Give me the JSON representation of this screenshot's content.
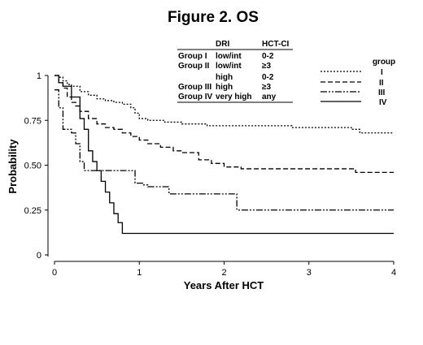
{
  "chart_data": {
    "type": "line",
    "step": true,
    "title": "Figure 2. OS",
    "xlabel": "Years After HCT",
    "ylabel": "Probability",
    "xlim": [
      0,
      4
    ],
    "ylim": [
      0,
      1
    ],
    "xticks": [
      0,
      1,
      2,
      3,
      4
    ],
    "yticks": [
      0,
      0.25,
      0.5,
      0.75,
      1
    ],
    "ytick_labels": [
      "0",
      "0.25",
      "0.50",
      "0.75",
      "1"
    ],
    "grid": false,
    "legend": {
      "title": "group",
      "position": "top-right",
      "entries": [
        "I",
        "II",
        "III",
        "IV"
      ]
    },
    "series": [
      {
        "name": "I",
        "line_style": "dotted",
        "points": [
          [
            0,
            1
          ],
          [
            0.05,
            0.99
          ],
          [
            0.1,
            0.97
          ],
          [
            0.15,
            0.95
          ],
          [
            0.2,
            0.94
          ],
          [
            0.3,
            0.91
          ],
          [
            0.4,
            0.89
          ],
          [
            0.5,
            0.87
          ],
          [
            0.6,
            0.86
          ],
          [
            0.7,
            0.85
          ],
          [
            0.8,
            0.84
          ],
          [
            0.9,
            0.82
          ],
          [
            0.95,
            0.79
          ],
          [
            1.0,
            0.76
          ],
          [
            1.1,
            0.75
          ],
          [
            1.3,
            0.74
          ],
          [
            1.5,
            0.73
          ],
          [
            1.8,
            0.72
          ],
          [
            2.2,
            0.72
          ],
          [
            2.8,
            0.71
          ],
          [
            3.5,
            0.7
          ],
          [
            3.6,
            0.68
          ],
          [
            4.0,
            0.68
          ]
        ]
      },
      {
        "name": "II",
        "line_style": "dashed",
        "points": [
          [
            0,
            1
          ],
          [
            0.05,
            0.96
          ],
          [
            0.1,
            0.93
          ],
          [
            0.15,
            0.88
          ],
          [
            0.2,
            0.85
          ],
          [
            0.25,
            0.83
          ],
          [
            0.3,
            0.8
          ],
          [
            0.4,
            0.76
          ],
          [
            0.5,
            0.73
          ],
          [
            0.6,
            0.71
          ],
          [
            0.7,
            0.7
          ],
          [
            0.8,
            0.68
          ],
          [
            0.9,
            0.66
          ],
          [
            1.0,
            0.64
          ],
          [
            1.1,
            0.62
          ],
          [
            1.25,
            0.6
          ],
          [
            1.4,
            0.58
          ],
          [
            1.5,
            0.57
          ],
          [
            1.7,
            0.53
          ],
          [
            1.85,
            0.51
          ],
          [
            2.0,
            0.49
          ],
          [
            2.2,
            0.48
          ],
          [
            3.5,
            0.48
          ],
          [
            3.55,
            0.46
          ],
          [
            4.0,
            0.46
          ]
        ]
      },
      {
        "name": "III",
        "line_style": "dash-dot",
        "points": [
          [
            0,
            0.92
          ],
          [
            0.05,
            0.82
          ],
          [
            0.1,
            0.7
          ],
          [
            0.2,
            0.68
          ],
          [
            0.25,
            0.62
          ],
          [
            0.3,
            0.52
          ],
          [
            0.35,
            0.47
          ],
          [
            0.95,
            0.4
          ],
          [
            1.05,
            0.39
          ],
          [
            1.1,
            0.38
          ],
          [
            1.35,
            0.34
          ],
          [
            2.05,
            0.34
          ],
          [
            2.15,
            0.25
          ],
          [
            4.0,
            0.25
          ]
        ]
      },
      {
        "name": "IV",
        "line_style": "solid",
        "points": [
          [
            0,
            1
          ],
          [
            0.05,
            0.96
          ],
          [
            0.1,
            0.94
          ],
          [
            0.2,
            0.88
          ],
          [
            0.3,
            0.76
          ],
          [
            0.35,
            0.7
          ],
          [
            0.4,
            0.58
          ],
          [
            0.45,
            0.52
          ],
          [
            0.5,
            0.47
          ],
          [
            0.55,
            0.41
          ],
          [
            0.6,
            0.35
          ],
          [
            0.65,
            0.29
          ],
          [
            0.7,
            0.23
          ],
          [
            0.75,
            0.18
          ],
          [
            0.8,
            0.12
          ],
          [
            4.0,
            0.12
          ]
        ]
      }
    ]
  },
  "group_table": {
    "headers": [
      "",
      "DRI",
      "HCT-CI"
    ],
    "rows": [
      [
        "Group I",
        "low/int",
        "0-2"
      ],
      [
        "Group II",
        "low/int",
        "≥3"
      ],
      [
        "",
        "high",
        "0-2"
      ],
      [
        "Group III",
        "high",
        "≥3"
      ],
      [
        "Group IV",
        "very high",
        "any"
      ]
    ]
  }
}
